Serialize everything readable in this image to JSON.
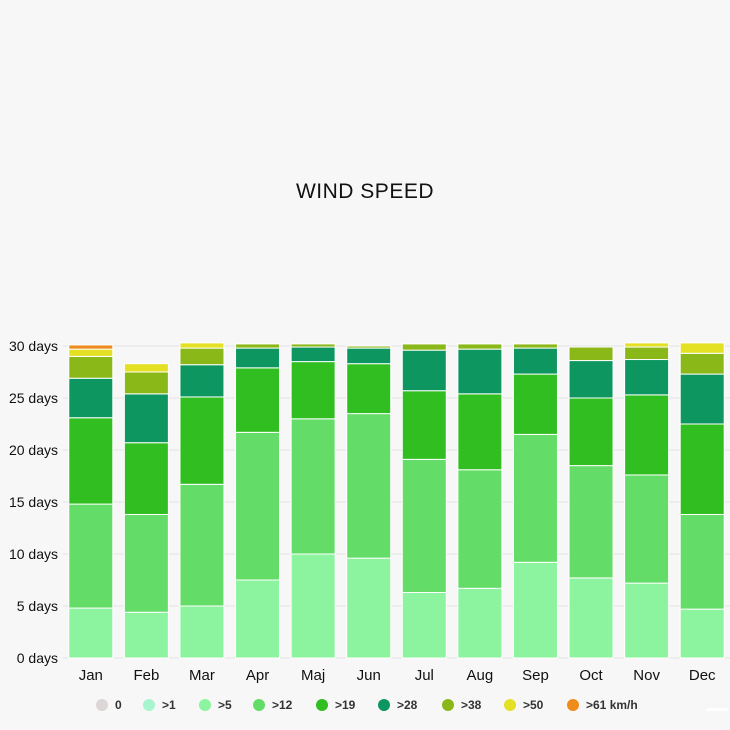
{
  "chart_data": {
    "type": "bar",
    "stacked": true,
    "title": "WIND SPEED",
    "categories": [
      "Jan",
      "Feb",
      "Mar",
      "Apr",
      "Maj",
      "Jun",
      "Jul",
      "Aug",
      "Sep",
      "Oct",
      "Nov",
      "Dec"
    ],
    "y_ticks": [
      "0 days",
      "5 days",
      "10 days",
      "15 days",
      "20 days",
      "25 days",
      "30 days"
    ],
    "ylim": [
      0,
      30
    ],
    "grid": true,
    "legend_position": "bottom",
    "series": [
      {
        "name": "0",
        "color": "#dcd6d6",
        "values": [
          0,
          0,
          0,
          0,
          0,
          0,
          0,
          0,
          0,
          0,
          0,
          0
        ]
      },
      {
        "name": ">1",
        "color": "#a7f5cf",
        "values": [
          0,
          0,
          0,
          0,
          0,
          0,
          0,
          0,
          0,
          0,
          0,
          0
        ]
      },
      {
        "name": ">5",
        "color": "#8cf49e",
        "values": [
          4.8,
          4.4,
          5,
          7.5,
          10,
          9.6,
          6.3,
          6.7,
          9.2,
          7.7,
          7.2,
          4.7
        ]
      },
      {
        "name": ">12",
        "color": "#64dc68",
        "values": [
          10,
          9.4,
          11.7,
          14.2,
          13,
          13.9,
          12.8,
          11.4,
          12.3,
          10.8,
          10.4,
          9.1
        ]
      },
      {
        "name": ">19",
        "color": "#30be21",
        "values": [
          8.3,
          6.9,
          8.4,
          6.2,
          5.5,
          4.8,
          6.6,
          7.3,
          5.8,
          6.5,
          7.7,
          8.7
        ]
      },
      {
        "name": ">28",
        "color": "#0e9660",
        "values": [
          3.8,
          4.7,
          3.1,
          1.9,
          1.4,
          1.5,
          3.9,
          4.3,
          2.5,
          3.6,
          3.4,
          4.8
        ]
      },
      {
        "name": ">38",
        "color": "#8ab818",
        "values": [
          2.1,
          2.1,
          1.6,
          0.4,
          0.3,
          0.2,
          0.6,
          0.5,
          0.4,
          1.3,
          1.2,
          2
        ]
      },
      {
        "name": ">50",
        "color": "#e4e024",
        "values": [
          0.7,
          0.8,
          0.5,
          0,
          0,
          0,
          0,
          0,
          0,
          0,
          0.4,
          1
        ]
      },
      {
        "name": ">61 km/h",
        "color": "#ef8a1c",
        "values": [
          0.4,
          0,
          0,
          0,
          0,
          0,
          0,
          0,
          0,
          0,
          0,
          0
        ]
      }
    ]
  }
}
